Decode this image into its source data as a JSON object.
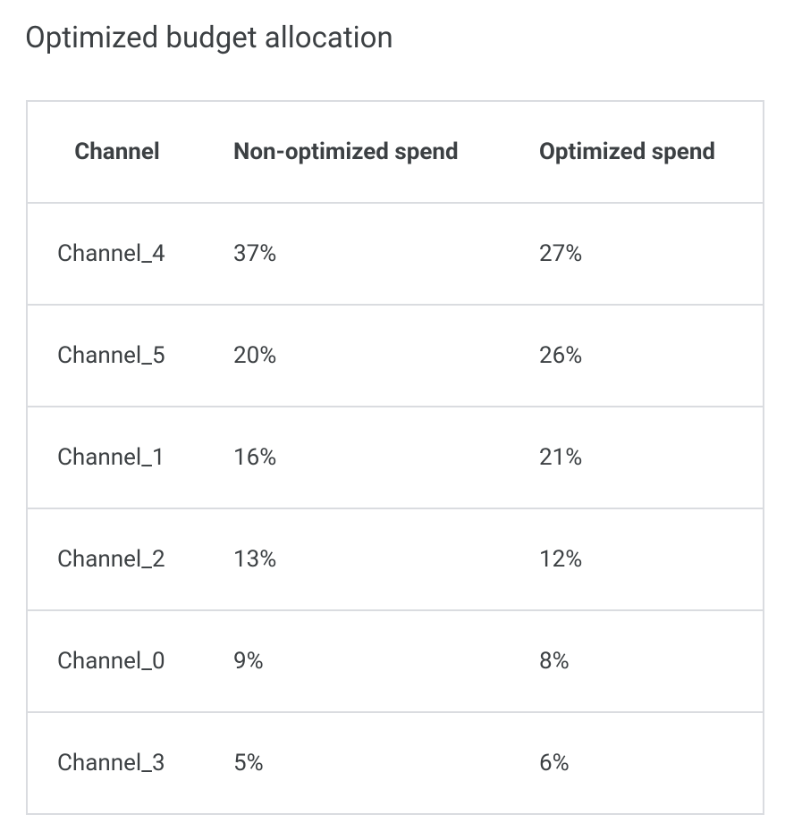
{
  "header": {
    "title": "Optimized budget allocation"
  },
  "table": {
    "columns": [
      "Channel",
      "Non-optimized spend",
      "Optimized spend"
    ],
    "rows": [
      [
        "Channel_4",
        "37%",
        "27%"
      ],
      [
        "Channel_5",
        "20%",
        "26%"
      ],
      [
        "Channel_1",
        "16%",
        "21%"
      ],
      [
        "Channel_2",
        "13%",
        "12%"
      ],
      [
        "Channel_0",
        "9%",
        "8%"
      ],
      [
        "Channel_3",
        "5%",
        "6%"
      ]
    ]
  }
}
